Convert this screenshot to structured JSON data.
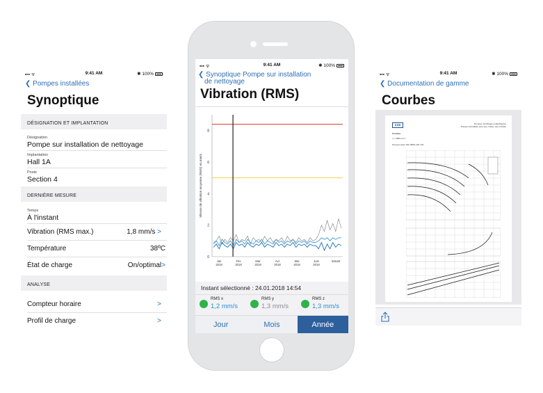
{
  "left": {
    "status": {
      "time": "9:41 AM",
      "battery": "100%"
    },
    "back_label": "Pompes installées",
    "title": "Synoptique",
    "section1": "DÉSIGNATION ET IMPLANTATION",
    "designation": {
      "label": "Désignation",
      "value": "Pompe sur installation de nettoyage"
    },
    "implantation": {
      "label": "Implantation",
      "value": "Hall 1A"
    },
    "poste": {
      "label": "Poste",
      "value": "Section 4"
    },
    "section2": "DERNIÈRE MESURE",
    "temps": {
      "label": "Temps",
      "value": "À l'instant"
    },
    "vibration": {
      "label": "Vibration (RMS max.)",
      "value": "1,8 mm/s"
    },
    "temperature": {
      "label": "Température",
      "value": "38ºC"
    },
    "charge": {
      "label": "État de charge",
      "value": "On/optimal"
    },
    "section3": "ANALYSE",
    "compteur": "Compteur horaire",
    "profil": "Profil de charge",
    "chevron": ">"
  },
  "center": {
    "status": {
      "time": "9:41 AM",
      "battery": "100%"
    },
    "back_label_line1": "Synoptique Pompe sur installation",
    "back_label_line2": "de nettoyage",
    "title": "Vibration (RMS)",
    "instant": "Instant sélectionné : 24.01.2018 14:54",
    "legend": [
      {
        "name": "RMS x",
        "value": "1,2 mm/s",
        "color": "#2a8fd6"
      },
      {
        "name": "RMS y",
        "value": "1,3 mm/s",
        "color": "#8e8e93"
      },
      {
        "name": "RMS z",
        "value": "1,3 mm/s",
        "color": "#2a8fd6"
      }
    ],
    "tabs": [
      "Jour",
      "Mois",
      "Année"
    ],
    "active_tab": "Année",
    "chart_data": {
      "type": "line",
      "ylabel": "Vitesse de vibration moyenne (RMS) en mm/s",
      "yticks": [
        "0",
        "2",
        "4",
        "6",
        "8"
      ],
      "xticks": [
        "Jan 2018",
        "Fév 2018",
        "Mar 2018",
        "Avr 2018",
        "Mai 2018",
        "Juin 2018",
        "Instant"
      ],
      "ylim": [
        0,
        9
      ],
      "thresholds": [
        {
          "value": 8.4,
          "color": "#e0302a"
        },
        {
          "value": 5.0,
          "color": "#f0d24a"
        }
      ],
      "cursor_x_fraction": 0.16,
      "series": [
        {
          "color": "#7a7a7a",
          "values": [
            0.9,
            1.0,
            1.3,
            0.8,
            1.1,
            0.9,
            1.2,
            1.0,
            1.4,
            0.9,
            1.1,
            1.0,
            1.3,
            0.8,
            1.2,
            1.0,
            1.1,
            0.9,
            1.3,
            1.0,
            1.2,
            0.9,
            1.1,
            1.0,
            1.2,
            0.9,
            1.3,
            1.0,
            1.1,
            0.9,
            1.2,
            1.0,
            1.1,
            0.9,
            1.2,
            1.0,
            1.1,
            1.4,
            2.0,
            1.6,
            2.3,
            1.7,
            2.1,
            1.6,
            2.4,
            1.8
          ]
        },
        {
          "color": "#3c9ad8",
          "values": [
            0.8,
            1.0,
            0.7,
            1.1,
            0.9,
            0.8,
            1.0,
            0.7,
            1.1,
            0.9,
            1.0,
            0.8,
            1.1,
            0.9,
            0.8,
            1.0,
            0.9,
            1.1,
            0.8,
            1.0,
            0.9,
            0.8,
            1.1,
            0.9,
            1.0,
            0.8,
            1.0,
            0.9,
            1.1,
            0.8,
            1.0,
            0.9,
            1.0,
            0.8,
            1.0,
            0.9,
            0.9,
            1.0,
            1.2,
            1.1,
            1.2,
            1.0,
            1.2,
            1.1,
            1.2,
            1.2
          ]
        },
        {
          "color": "#1f6fb5",
          "values": [
            0.6,
            0.8,
            0.5,
            0.9,
            0.7,
            0.6,
            0.8,
            0.5,
            0.9,
            0.7,
            0.8,
            0.6,
            0.9,
            0.7,
            0.6,
            0.8,
            0.7,
            0.9,
            0.6,
            0.8,
            0.7,
            0.6,
            0.9,
            0.7,
            0.8,
            0.6,
            0.8,
            0.7,
            0.9,
            0.6,
            0.8,
            0.7,
            0.8,
            0.6,
            0.8,
            0.7,
            0.7,
            0.5,
            0.9,
            0.4,
            0.8,
            0.5,
            0.9,
            0.6,
            0.8,
            0.7
          ]
        }
      ]
    }
  },
  "right": {
    "status": {
      "time": "9:41 AM",
      "battery": "100%"
    },
    "back_label": "Documentation de gamme",
    "title": "Courbes",
    "doc_brand": "KSB",
    "doc_heading_line1": "Pompes centrifuges à diaphragme",
    "doc_heading_line2": "Pompe normalisée pour eau, huiles, eau circulée",
    "doc_label": "Courbes",
    "doc_info_1": "n = 2900 min⁻¹",
    "doc_info_2": "Pompes selon ISO 2858 / EN 733",
    "share_icon": "share-icon"
  }
}
